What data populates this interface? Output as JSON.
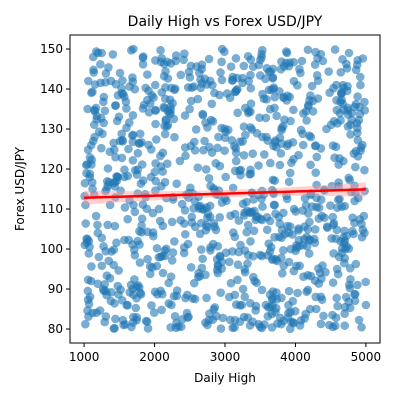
{
  "chart_data": {
    "type": "scatter",
    "title": "Daily High vs Forex USD/JPY",
    "xlabel": "Daily High",
    "ylabel": "Forex USD/JPY",
    "xlim": [
      800,
      5200
    ],
    "ylim": [
      76.5,
      153.5
    ],
    "xticks": [
      1000,
      2000,
      3000,
      4000,
      5000
    ],
    "yticks": [
      80,
      90,
      100,
      110,
      120,
      130,
      140,
      150
    ],
    "grid": false,
    "legend": "none",
    "point_color": "#1f77b4",
    "point_alpha": 0.6,
    "point_count_estimate": 1000,
    "x_range": [
      1000,
      5000
    ],
    "y_range": [
      80,
      150
    ],
    "series": [
      {
        "points": [
          [
            1010,
            101
          ],
          [
            1020,
            111
          ],
          [
            1030,
            121
          ],
          [
            1050,
            135
          ],
          [
            1060,
            142
          ],
          [
            1080,
            118
          ],
          [
            1100,
            92
          ],
          [
            1120,
            84
          ],
          [
            1130,
            148
          ],
          [
            1150,
            128
          ],
          [
            1190,
            106
          ],
          [
            1210,
            98
          ],
          [
            1250,
            149
          ],
          [
            1280,
            138
          ],
          [
            1320,
            115
          ],
          [
            1380,
            87
          ],
          [
            1420,
            96
          ],
          [
            1470,
            132
          ],
          [
            1510,
            144
          ],
          [
            1560,
            81
          ],
          [
            1630,
            125
          ],
          [
            1700,
            150
          ],
          [
            1760,
            102
          ],
          [
            1800,
            89
          ],
          [
            1850,
            136
          ],
          [
            1880,
            82
          ],
          [
            1950,
            118
          ],
          [
            2010,
            141
          ],
          [
            2080,
            107
          ],
          [
            2120,
            94
          ],
          [
            2190,
            131
          ],
          [
            2240,
            86
          ],
          [
            2300,
            147
          ],
          [
            2360,
            122
          ],
          [
            2420,
            99
          ],
          [
            2460,
            84
          ],
          [
            2520,
            137
          ],
          [
            2570,
            112
          ],
          [
            2620,
            93
          ],
          [
            2670,
            145
          ],
          [
            2710,
            127
          ],
          [
            2750,
            81
          ],
          [
            2790,
            108
          ],
          [
            2850,
            139
          ],
          [
            2900,
            96
          ],
          [
            2960,
            150
          ],
          [
            3010,
            118
          ],
          [
            3060,
            88
          ],
          [
            3110,
            143
          ],
          [
            3160,
            124
          ],
          [
            3220,
            101
          ],
          [
            3270,
            83
          ],
          [
            3330,
            134
          ],
          [
            3380,
            114
          ],
          [
            3420,
            92
          ],
          [
            3480,
            146
          ],
          [
            3530,
            128
          ],
          [
            3580,
            86
          ],
          [
            3640,
            107
          ],
          [
            3690,
            140
          ],
          [
            3740,
            97
          ],
          [
            3780,
            121
          ],
          [
            3830,
            82
          ],
          [
            3880,
            149
          ],
          [
            3930,
            132
          ],
          [
            3980,
            110
          ],
          [
            4030,
            89
          ],
          [
            4070,
            144
          ],
          [
            4110,
            126
          ],
          [
            4160,
            103
          ],
          [
            4210,
            85
          ],
          [
            4250,
            137
          ],
          [
            4300,
            116
          ],
          [
            4350,
            94
          ],
          [
            4390,
            147
          ],
          [
            4440,
            130
          ],
          [
            4480,
            81
          ],
          [
            4530,
            108
          ],
          [
            4580,
            141
          ],
          [
            4620,
            98
          ],
          [
            4680,
            122
          ],
          [
            4720,
            88
          ],
          [
            4760,
            149
          ],
          [
            4800,
            134
          ],
          [
            4840,
            112
          ],
          [
            4880,
            91
          ],
          [
            4920,
            143
          ],
          [
            4950,
            126
          ],
          [
            4980,
            104
          ],
          [
            5000,
            86
          ]
        ]
      }
    ],
    "regression": {
      "color": "#ff0000",
      "band_color": "#ff9999",
      "x": [
        1000,
        5000
      ],
      "y": [
        112.8,
        114.9
      ],
      "ci_halfwidth_at_ends": 1.8,
      "ci_halfwidth_center": 0.9
    }
  }
}
